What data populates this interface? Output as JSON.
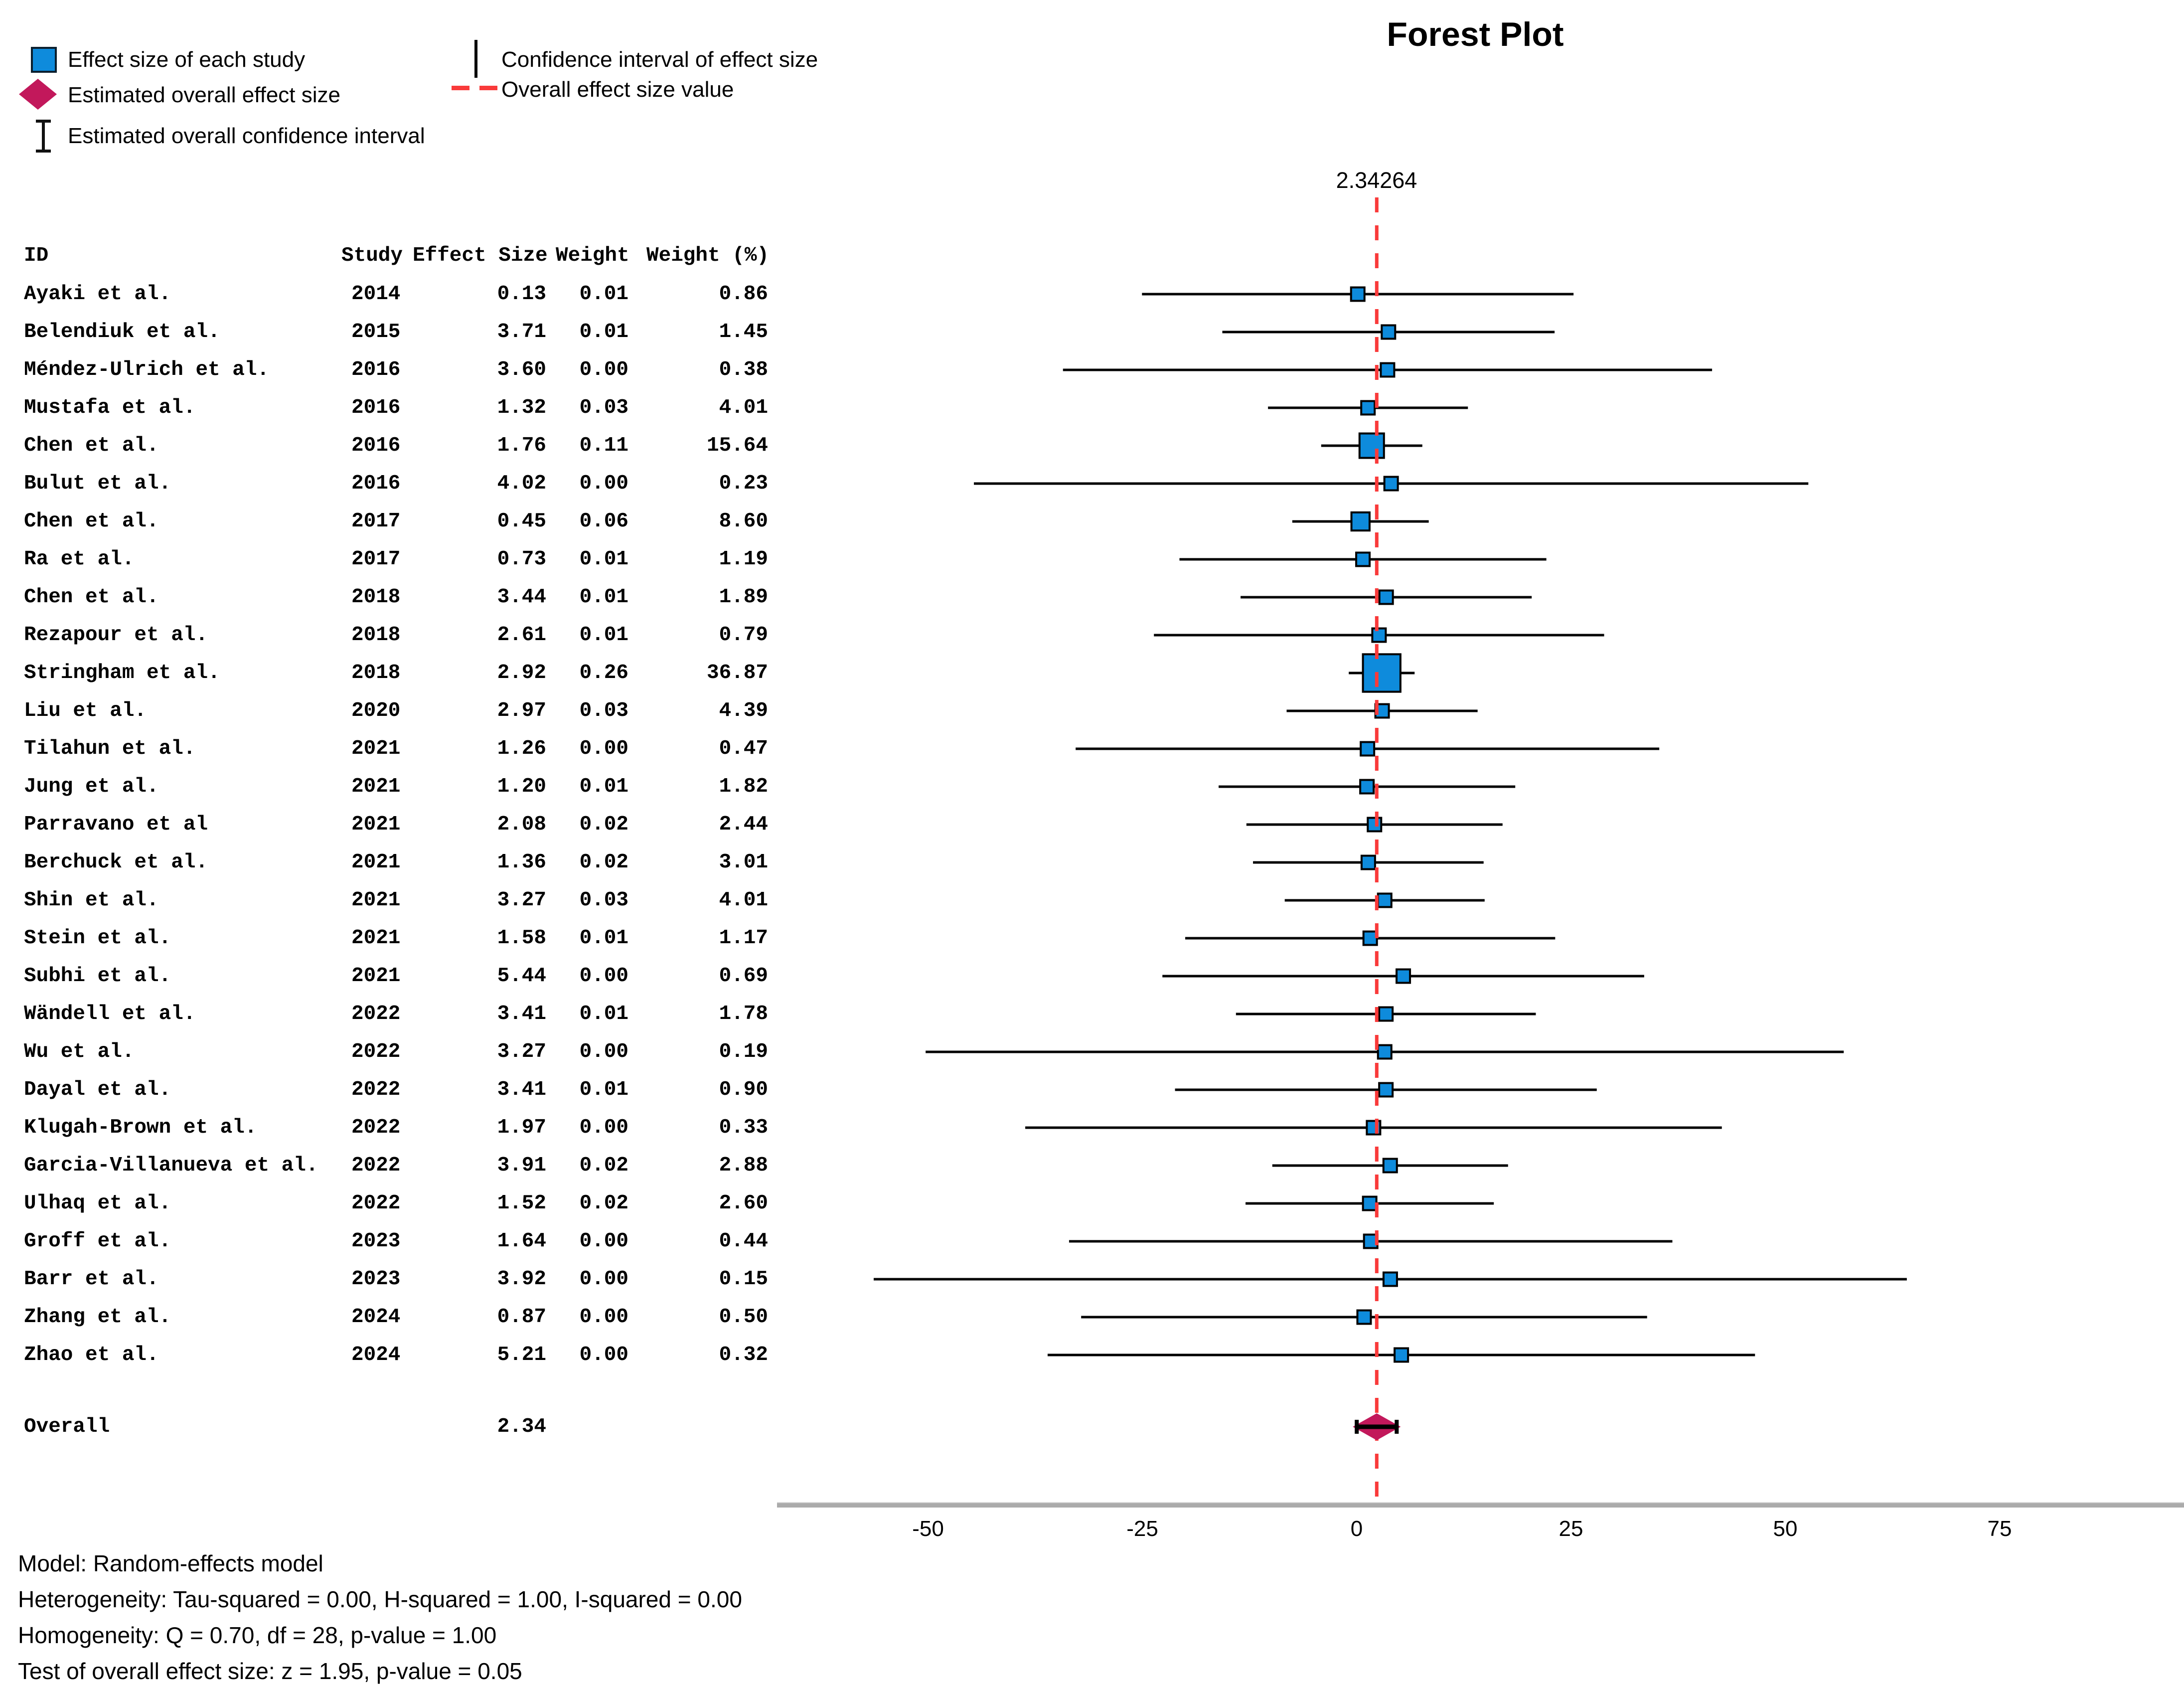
{
  "page_title": "Forest Plot",
  "colors": {
    "study_marker_fill": "#0E8BDC",
    "study_marker_border": "#000000",
    "ci_line": "#000000",
    "overall_diamond": "#C2185B",
    "overall_effect_line": "#F93A3A",
    "axis_bar": "#ABABAB",
    "text": "#000000"
  },
  "legend": {
    "items": [
      {
        "glyph": "square-icon",
        "label": "Effect size of each study"
      },
      {
        "glyph": "diamond-icon",
        "label": "Estimated overall effect size"
      },
      {
        "glyph": "error-bar-icon",
        "label": "Estimated overall confidence interval"
      },
      {
        "glyph": "ci-line-icon",
        "label": "Confidence interval of effect size"
      },
      {
        "glyph": "dashed-line-icon",
        "label": "Overall effect size value"
      }
    ]
  },
  "table": {
    "headers": {
      "id": "ID",
      "study": "Study",
      "effect": "Effect Size",
      "weight": "Weight",
      "weight_pct": "Weight (%)"
    }
  },
  "overall_row": {
    "label": "Overall",
    "effect": "2.34"
  },
  "chart_data": {
    "type": "forest",
    "title": "Forest Plot",
    "axis": {
      "ticks": [
        -50,
        -25,
        0,
        25,
        50,
        75
      ],
      "xlim": [
        -68,
        96
      ],
      "overall_line_label": "2.34264",
      "overall_line_value": 2.34264
    },
    "overall": {
      "label": "Overall",
      "effect": 2.34,
      "effect_display": "2.34",
      "ci_low": 0.01,
      "ci_high": 4.67
    },
    "studies": [
      {
        "id": "Ayaki et al.",
        "year": "2014",
        "effect": "0.13",
        "weight": "0.01",
        "weight_pct": "0.86",
        "ci_low": -25.04,
        "ci_high": 25.3
      },
      {
        "id": "Belendiuk et al.",
        "year": "2015",
        "effect": "3.71",
        "weight": "0.01",
        "weight_pct": "1.45",
        "ci_low": -15.67,
        "ci_high": 23.09
      },
      {
        "id": "Méndez-Ulrich et al.",
        "year": "2016",
        "effect": "3.60",
        "weight": "0.00",
        "weight_pct": "0.38",
        "ci_low": -34.26,
        "ci_high": 41.46
      },
      {
        "id": "Mustafa et al.",
        "year": "2016",
        "effect": "1.32",
        "weight": "0.03",
        "weight_pct": "4.01",
        "ci_low": -10.34,
        "ci_high": 12.98
      },
      {
        "id": "Chen et al.",
        "year": "2016",
        "effect": "1.76",
        "weight": "0.11",
        "weight_pct": "15.64",
        "ci_low": -4.14,
        "ci_high": 7.66
      },
      {
        "id": "Bulut et al.",
        "year": "2016",
        "effect": "4.02",
        "weight": "0.00",
        "weight_pct": "0.23",
        "ci_low": -44.65,
        "ci_high": 52.69
      },
      {
        "id": "Chen et al.",
        "year": "2017",
        "effect": "0.45",
        "weight": "0.06",
        "weight_pct": "8.60",
        "ci_low": -7.51,
        "ci_high": 8.41
      },
      {
        "id": "Ra et al.",
        "year": "2017",
        "effect": "0.73",
        "weight": "0.01",
        "weight_pct": "1.19",
        "ci_low": -20.67,
        "ci_high": 22.13
      },
      {
        "id": "Chen et al.",
        "year": "2018",
        "effect": "3.44",
        "weight": "0.01",
        "weight_pct": "1.89",
        "ci_low": -13.54,
        "ci_high": 20.42
      },
      {
        "id": "Rezapour et al.",
        "year": "2018",
        "effect": "2.61",
        "weight": "0.01",
        "weight_pct": "0.79",
        "ci_low": -23.65,
        "ci_high": 28.87
      },
      {
        "id": "Stringham et al.",
        "year": "2018",
        "effect": "2.92",
        "weight": "0.26",
        "weight_pct": "36.87",
        "ci_low": -0.92,
        "ci_high": 6.76
      },
      {
        "id": "Liu et al.",
        "year": "2020",
        "effect": "2.97",
        "weight": "0.03",
        "weight_pct": "4.39",
        "ci_low": -8.17,
        "ci_high": 14.11
      },
      {
        "id": "Tilahun et al.",
        "year": "2021",
        "effect": "1.26",
        "weight": "0.00",
        "weight_pct": "0.47",
        "ci_low": -32.78,
        "ci_high": 35.3
      },
      {
        "id": "Jung et al.",
        "year": "2021",
        "effect": "1.20",
        "weight": "0.01",
        "weight_pct": "1.82",
        "ci_low": -16.1,
        "ci_high": 18.5
      },
      {
        "id": "Parravano et al",
        "year": "2021",
        "effect": "2.08",
        "weight": "0.02",
        "weight_pct": "2.44",
        "ci_low": -12.86,
        "ci_high": 17.02
      },
      {
        "id": "Berchuck et al.",
        "year": "2021",
        "effect": "1.36",
        "weight": "0.02",
        "weight_pct": "3.01",
        "ci_low": -12.09,
        "ci_high": 14.81
      },
      {
        "id": "Shin et al.",
        "year": "2021",
        "effect": "3.27",
        "weight": "0.03",
        "weight_pct": "4.01",
        "ci_low": -8.39,
        "ci_high": 14.93
      },
      {
        "id": "Stein et al.",
        "year": "2021",
        "effect": "1.58",
        "weight": "0.01",
        "weight_pct": "1.17",
        "ci_low": -20.0,
        "ci_high": 23.16
      },
      {
        "id": "Subhi et al.",
        "year": "2021",
        "effect": "5.44",
        "weight": "0.00",
        "weight_pct": "0.69",
        "ci_low": -22.66,
        "ci_high": 33.54
      },
      {
        "id": "Wändell et al.",
        "year": "2022",
        "effect": "3.41",
        "weight": "0.01",
        "weight_pct": "1.78",
        "ci_low": -14.08,
        "ci_high": 20.9
      },
      {
        "id": "Wu et al.",
        "year": "2022",
        "effect": "3.27",
        "weight": "0.00",
        "weight_pct": "0.19",
        "ci_low": -50.28,
        "ci_high": 56.82
      },
      {
        "id": "Dayal et al.",
        "year": "2022",
        "effect": "3.41",
        "weight": "0.01",
        "weight_pct": "0.90",
        "ci_low": -21.19,
        "ci_high": 28.01
      },
      {
        "id": "Klugah-Brown et al.",
        "year": "2022",
        "effect": "1.97",
        "weight": "0.00",
        "weight_pct": "0.33",
        "ci_low": -38.66,
        "ci_high": 42.6
      },
      {
        "id": "Garcia-Villanueva et al.",
        "year": "2022",
        "effect": "3.91",
        "weight": "0.02",
        "weight_pct": "2.88",
        "ci_low": -9.84,
        "ci_high": 17.66
      },
      {
        "id": "Ulhaq et al.",
        "year": "2022",
        "effect": "1.52",
        "weight": "0.02",
        "weight_pct": "2.60",
        "ci_low": -12.96,
        "ci_high": 16.0
      },
      {
        "id": "Groff et al.",
        "year": "2023",
        "effect": "1.64",
        "weight": "0.00",
        "weight_pct": "0.44",
        "ci_low": -33.55,
        "ci_high": 36.83
      },
      {
        "id": "Barr et al.",
        "year": "2023",
        "effect": "3.92",
        "weight": "0.00",
        "weight_pct": "0.15",
        "ci_low": -56.34,
        "ci_high": 64.18
      },
      {
        "id": "Zhang et al.",
        "year": "2024",
        "effect": "0.87",
        "weight": "0.00",
        "weight_pct": "0.50",
        "ci_low": -32.14,
        "ci_high": 33.88
      },
      {
        "id": "Zhao et al.",
        "year": "2024",
        "effect": "5.21",
        "weight": "0.00",
        "weight_pct": "0.32",
        "ci_low": -36.05,
        "ci_high": 46.47
      }
    ]
  },
  "footer": {
    "lines": [
      "Model: Random-effects model",
      "Heterogeneity: Tau-squared = 0.00, H-squared = 1.00, I-squared = 0.00",
      "Homogeneity: Q = 0.70, df = 28, p-value = 1.00",
      "Test of overall effect size: z = 1.95, p-value = 0.05"
    ]
  }
}
